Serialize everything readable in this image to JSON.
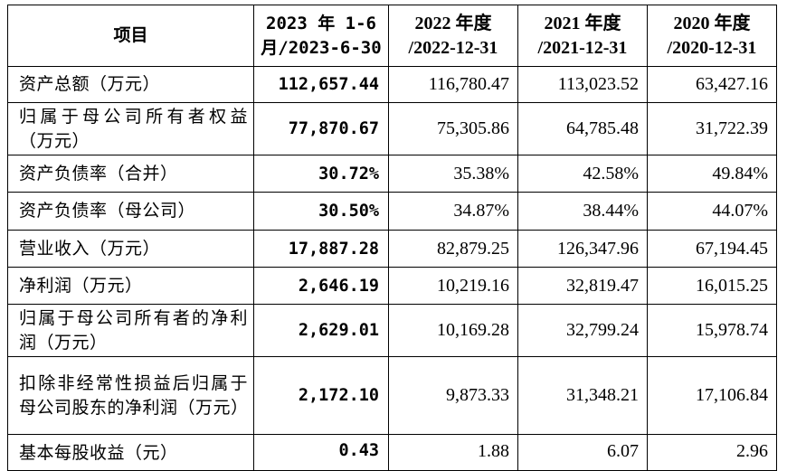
{
  "table": {
    "headers": [
      {
        "line1": "项目",
        "line2": ""
      },
      {
        "line1": "2023 年 1-6",
        "line2": "月/2023-6-30"
      },
      {
        "line1": "2022 年度",
        "line2": "/2022-12-31"
      },
      {
        "line1": "2021 年度",
        "line2": "/2021-12-31"
      },
      {
        "line1": "2020 年度",
        "line2": "/2020-12-31"
      }
    ],
    "rows": [
      {
        "label": "资产总额（万元）",
        "values": [
          "112,657.44",
          "116,780.47",
          "113,023.52",
          "63,427.16"
        ]
      },
      {
        "label": "归属于母公司所有者权益（万元）",
        "values": [
          "77,870.67",
          "75,305.86",
          "64,785.48",
          "31,722.39"
        ]
      },
      {
        "label": "资产负债率（合并）",
        "values": [
          "30.72%",
          "35.38%",
          "42.58%",
          "49.84%"
        ]
      },
      {
        "label": "资产负债率（母公司）",
        "values": [
          "30.50%",
          "34.87%",
          "38.44%",
          "44.07%"
        ]
      },
      {
        "label": "营业收入（万元）",
        "values": [
          "17,887.28",
          "82,879.25",
          "126,347.96",
          "67,194.45"
        ]
      },
      {
        "label": "净利润（万元）",
        "values": [
          "2,646.19",
          "10,219.16",
          "32,819.47",
          "16,015.25"
        ]
      },
      {
        "label": "归属于母公司所有者的净利润（万元）",
        "values": [
          "2,629.01",
          "10,169.28",
          "32,799.24",
          "15,978.74"
        ]
      },
      {
        "label": "扣除非经常性损益后归属于母公司股东的净利润（万元）",
        "values": [
          "2,172.10",
          "9,873.33",
          "31,348.21",
          "17,106.84"
        ]
      },
      {
        "label": "基本每股收益（元）",
        "values": [
          "0.43",
          "1.88",
          "6.07",
          "2.96"
        ]
      }
    ]
  }
}
